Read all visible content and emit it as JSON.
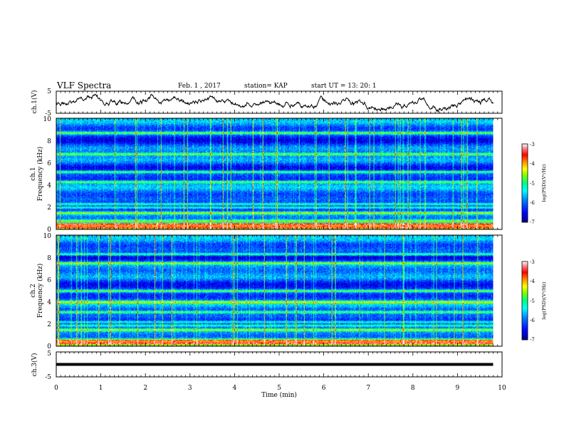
{
  "header": {
    "title": "VLF Spectra",
    "date": "Feb. 1 , 2017",
    "station": "station= KAP",
    "start": "start  UT =   13: 20: 1"
  },
  "colors": {
    "palette": [
      "#000080",
      "#0000ff",
      "#0080ff",
      "#00ffff",
      "#00ff80",
      "#80ff00",
      "#ffff00",
      "#ff8000",
      "#ff0000",
      "#ff8080",
      "#ffffff"
    ]
  },
  "chart_data": [
    {
      "type": "line",
      "ylabel": "ch.1(V)",
      "ylim": [
        -5,
        5
      ],
      "y_ticks": [
        "5",
        "-5"
      ],
      "xlim": [
        0,
        10
      ]
    },
    {
      "type": "heatmap",
      "ylabel_lines": [
        "ch.1",
        "Frequency  (kHz)"
      ],
      "ylim": [
        0,
        10
      ],
      "y_ticks": [
        "0",
        "2",
        "4",
        "6",
        "8",
        "10"
      ],
      "xlim": [
        0,
        10
      ],
      "colorbar": {
        "label": "log(PSD)(V²/Hz)",
        "ticks": [
          "-3",
          "-4",
          "-5",
          "-6",
          "-7"
        ],
        "range": [
          -7,
          -3
        ]
      },
      "bands_khz": [
        0.2,
        0.5,
        0.8,
        1.5,
        2.0,
        2.3,
        4.3,
        5.2,
        6.8,
        8.7
      ],
      "data_end_min": 9.8
    },
    {
      "type": "heatmap",
      "ylabel_lines": [
        "ch.2",
        "Frequency  (kHz)"
      ],
      "ylim": [
        0,
        10
      ],
      "y_ticks": [
        "0",
        "2",
        "4",
        "6",
        "8",
        "10"
      ],
      "xlim": [
        0,
        10
      ],
      "colorbar": {
        "label": "log(PSD)(V²/Hz)",
        "ticks": [
          "-3",
          "-4",
          "-5",
          "-6",
          "-7"
        ],
        "range": [
          -7,
          -3
        ]
      },
      "bands_khz": [
        0.3,
        0.6,
        1.5,
        1.9,
        2.2,
        3.1,
        4.0,
        5.0,
        7.5,
        8.3
      ],
      "data_end_min": 9.8
    },
    {
      "type": "line",
      "ylabel": "ch.3(V)",
      "ylim": [
        -5,
        5
      ],
      "y_ticks": [
        "5",
        "-5"
      ],
      "xlim": [
        0,
        10
      ],
      "constant_value": 0,
      "xlabel": "Time  (min)",
      "x_ticks": [
        "0",
        "1",
        "2",
        "3",
        "4",
        "5",
        "6",
        "7",
        "8",
        "9",
        "10"
      ]
    }
  ]
}
